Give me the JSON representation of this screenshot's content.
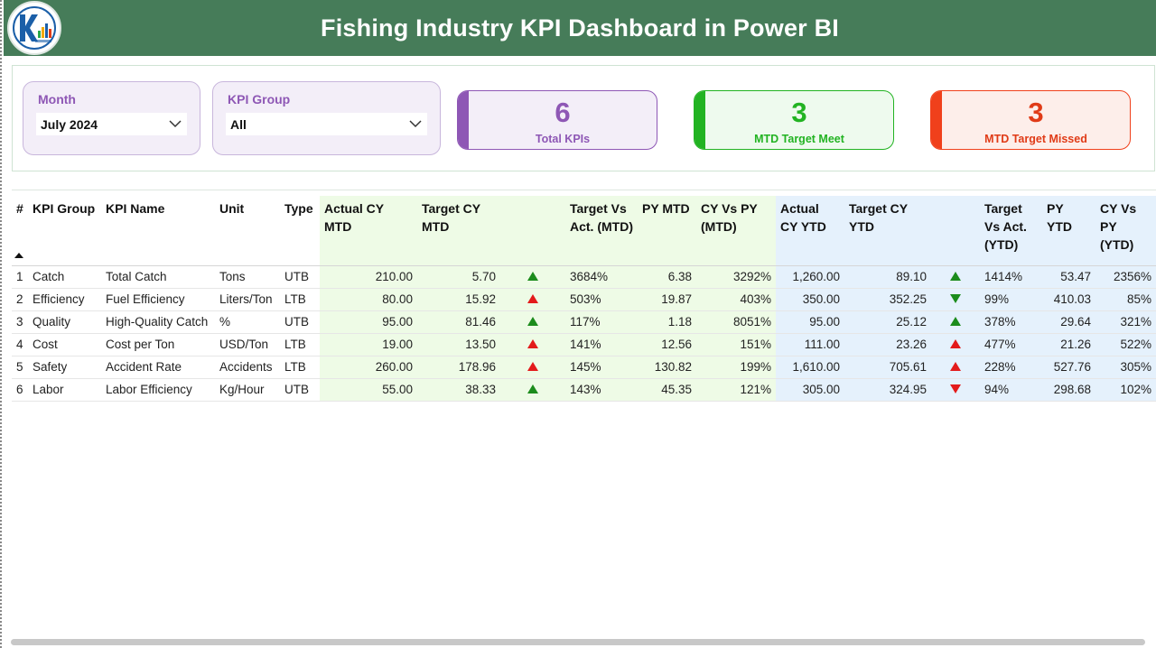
{
  "header": {
    "title": "Fishing Industry KPI Dashboard in Power BI",
    "logo_icon": "company-logo"
  },
  "colors": {
    "header_bg": "#467c59",
    "purple": "#8e57b5",
    "green": "#22b322",
    "red": "#f0401b",
    "arrow_green": "#1c8c1c",
    "arrow_red": "#e31b1b"
  },
  "slicers": {
    "month": {
      "label": "Month",
      "value": "July 2024"
    },
    "kpi_group": {
      "label": "KPI Group",
      "value": "All"
    }
  },
  "cards": {
    "total": {
      "value": "6",
      "label": "Total KPIs"
    },
    "meet": {
      "value": "3",
      "label": "MTD Target Meet"
    },
    "missed": {
      "value": "3",
      "label": "MTD Target Missed"
    }
  },
  "table": {
    "headers": {
      "num": "#",
      "group": "KPI Group",
      "name": "KPI Name",
      "unit": "Unit",
      "type": "Type",
      "actual_mtd": "Actual CY MTD",
      "target_mtd": "Target CY MTD",
      "tva_mtd": "Target Vs Act. (MTD)",
      "py_mtd": "PY MTD",
      "cyvpy_mtd": "CY Vs PY (MTD)",
      "actual_ytd": "Actual CY YTD",
      "target_ytd": "Target CY YTD",
      "tva_ytd": "Target Vs Act. (YTD)",
      "py_ytd": "PY YTD",
      "cyvpy_ytd": "CY Vs PY (YTD)"
    },
    "rows": [
      {
        "num": "1",
        "group": "Catch",
        "name": "Total Catch",
        "unit": "Tons",
        "type": "UTB",
        "actual_mtd": "210.00",
        "target_mtd": "5.70",
        "mtd_dir": "up",
        "mtd_color": "green",
        "tva_mtd": "3684%",
        "py_mtd": "6.38",
        "cyvpy_mtd": "3292%",
        "actual_ytd": "1,260.00",
        "target_ytd": "89.10",
        "ytd_dir": "up",
        "ytd_color": "green",
        "tva_ytd": "1414%",
        "py_ytd": "53.47",
        "cyvpy_ytd": "2356%"
      },
      {
        "num": "2",
        "group": "Efficiency",
        "name": "Fuel Efficiency",
        "unit": "Liters/Ton",
        "type": "LTB",
        "actual_mtd": "80.00",
        "target_mtd": "15.92",
        "mtd_dir": "up",
        "mtd_color": "red",
        "tva_mtd": "503%",
        "py_mtd": "19.87",
        "cyvpy_mtd": "403%",
        "actual_ytd": "350.00",
        "target_ytd": "352.25",
        "ytd_dir": "down",
        "ytd_color": "green",
        "tva_ytd": "99%",
        "py_ytd": "410.03",
        "cyvpy_ytd": "85%"
      },
      {
        "num": "3",
        "group": "Quality",
        "name": "High-Quality Catch",
        "unit": "%",
        "type": "UTB",
        "actual_mtd": "95.00",
        "target_mtd": "81.46",
        "mtd_dir": "up",
        "mtd_color": "green",
        "tva_mtd": "117%",
        "py_mtd": "1.18",
        "cyvpy_mtd": "8051%",
        "actual_ytd": "95.00",
        "target_ytd": "25.12",
        "ytd_dir": "up",
        "ytd_color": "green",
        "tva_ytd": "378%",
        "py_ytd": "29.64",
        "cyvpy_ytd": "321%"
      },
      {
        "num": "4",
        "group": "Cost",
        "name": "Cost per Ton",
        "unit": "USD/Ton",
        "type": "LTB",
        "actual_mtd": "19.00",
        "target_mtd": "13.50",
        "mtd_dir": "up",
        "mtd_color": "red",
        "tva_mtd": "141%",
        "py_mtd": "12.56",
        "cyvpy_mtd": "151%",
        "actual_ytd": "111.00",
        "target_ytd": "23.26",
        "ytd_dir": "up",
        "ytd_color": "red",
        "tva_ytd": "477%",
        "py_ytd": "21.26",
        "cyvpy_ytd": "522%"
      },
      {
        "num": "5",
        "group": "Safety",
        "name": "Accident Rate",
        "unit": "Accidents",
        "type": "LTB",
        "actual_mtd": "260.00",
        "target_mtd": "178.96",
        "mtd_dir": "up",
        "mtd_color": "red",
        "tva_mtd": "145%",
        "py_mtd": "130.82",
        "cyvpy_mtd": "199%",
        "actual_ytd": "1,610.00",
        "target_ytd": "705.61",
        "ytd_dir": "up",
        "ytd_color": "red",
        "tva_ytd": "228%",
        "py_ytd": "527.76",
        "cyvpy_ytd": "305%"
      },
      {
        "num": "6",
        "group": "Labor",
        "name": "Labor Efficiency",
        "unit": "Kg/Hour",
        "type": "UTB",
        "actual_mtd": "55.00",
        "target_mtd": "38.33",
        "mtd_dir": "up",
        "mtd_color": "green",
        "tva_mtd": "143%",
        "py_mtd": "45.35",
        "cyvpy_mtd": "121%",
        "actual_ytd": "305.00",
        "target_ytd": "324.95",
        "ytd_dir": "down",
        "ytd_color": "red",
        "tva_ytd": "94%",
        "py_ytd": "298.68",
        "cyvpy_ytd": "102%"
      }
    ]
  }
}
